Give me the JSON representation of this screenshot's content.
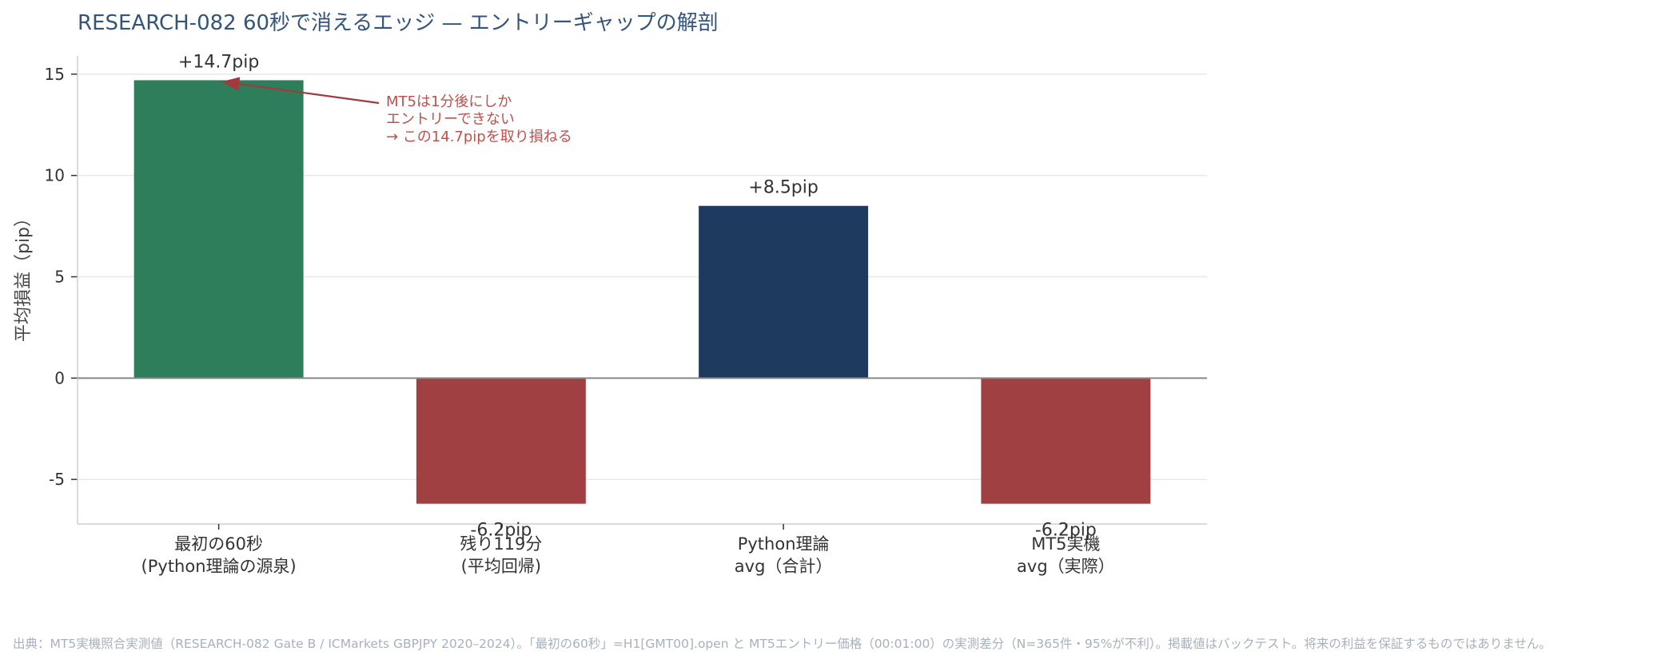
{
  "title": "RESEARCH-082  60秒で消えるエッジ — エントリーギャップの解剖",
  "source": "出典：MT5実機照合実測値（RESEARCH-082 Gate B / ICMarkets GBPJPY 2020–2024）。「最初の60秒」=H1[GMT00].open と MT5エントリー価格（00:01:00）の実測差分（N=365件・95%が不利）。掲載値はバックテスト。将来の利益を保証するものではありません。",
  "colors": {
    "title": "#34557a",
    "green": "#2e7d5b",
    "red": "#a04043",
    "navy": "#1e3a5f",
    "annotation": "#c0504d",
    "grid": "#e6e8ec",
    "zero_line": "#888888"
  },
  "annotation": {
    "lines": [
      "MT5は1分後にしか",
      "エントリーできない",
      "→ この14.7pipを取り損ねる"
    ]
  },
  "chart_data": {
    "type": "bar",
    "title": "RESEARCH-082  60秒で消えるエッジ — エントリーギャップの解剖",
    "xlabel": "",
    "ylabel": "平均損益（pip）",
    "ylim": [
      -7.2,
      15.9
    ],
    "yticks": [
      -5,
      0,
      5,
      10,
      15
    ],
    "grid": true,
    "categories": [
      [
        "最初の60秒",
        "(Python理論の源泉)"
      ],
      [
        "残り119分",
        "(平均回帰)"
      ],
      [
        "Python理論",
        "avg（合計）"
      ],
      [
        "MT5実機",
        "avg（実際）"
      ]
    ],
    "values": [
      14.7,
      -6.2,
      8.5,
      -6.2
    ],
    "data_labels": [
      "+14.7pip",
      "-6.2pip",
      "+8.5pip",
      "-6.2pip"
    ],
    "bar_colors": [
      "#2e7d5b",
      "#a04043",
      "#1e3a5f",
      "#a04043"
    ]
  }
}
